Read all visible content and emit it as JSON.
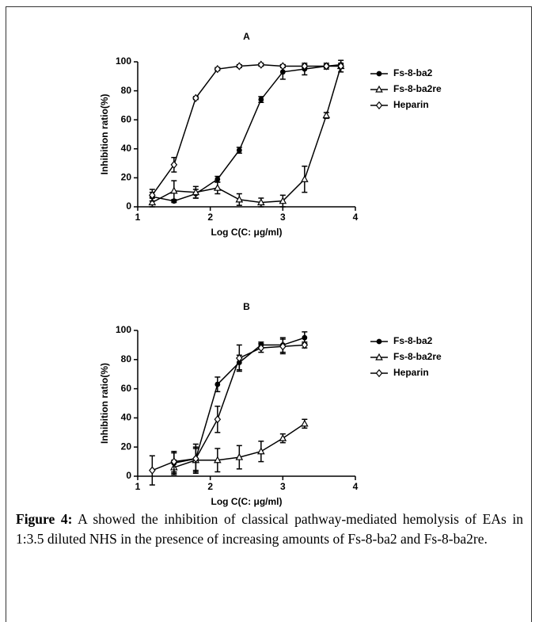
{
  "chart_data": [
    {
      "type": "line",
      "title": "A",
      "xlabel": "Log C(C: μg/ml)",
      "ylabel": "Inhibition ratio(%)",
      "xlim": [
        1,
        4
      ],
      "xticks": [
        1,
        2,
        3,
        4
      ],
      "ylim": [
        0,
        100
      ],
      "yticks": [
        0,
        20,
        40,
        60,
        80,
        100
      ],
      "legend": "right",
      "series": [
        {
          "name": "Fs-8-ba2",
          "marker": "circle",
          "color": "#000000",
          "x": [
            1.2,
            1.5,
            1.8,
            2.1,
            2.4,
            2.7,
            3.0,
            3.3,
            3.6,
            3.8
          ],
          "values": [
            7,
            4,
            9,
            19,
            39,
            74,
            93,
            95,
            97,
            98
          ],
          "errors": [
            3,
            1,
            3,
            2,
            2,
            2,
            5,
            4,
            2,
            1
          ]
        },
        {
          "name": "Fs-8-ba2re",
          "marker": "triangle",
          "color": "#000000",
          "x": [
            1.2,
            1.5,
            1.8,
            2.1,
            2.4,
            2.7,
            3.0,
            3.3,
            3.6,
            3.8
          ],
          "values": [
            3,
            11,
            10,
            13,
            5,
            3,
            4,
            19,
            63,
            97
          ],
          "errors": [
            3,
            7,
            4,
            4,
            4,
            3,
            4,
            9,
            2,
            4
          ]
        },
        {
          "name": "Heparin",
          "marker": "diamond",
          "color": "#000000",
          "x": [
            1.2,
            1.5,
            1.8,
            2.1,
            2.4,
            2.7,
            3.0,
            3.3,
            3.6,
            3.8
          ],
          "values": [
            8,
            29,
            75,
            95,
            97,
            98,
            97,
            97,
            97,
            97
          ],
          "errors": [
            4,
            5,
            1,
            1,
            1,
            1,
            1,
            1,
            1,
            1
          ]
        }
      ]
    },
    {
      "type": "line",
      "title": "B",
      "xlabel": "Log C(C: μg/ml)",
      "ylabel": "Inhibition ratio(%)",
      "xlim": [
        1,
        4
      ],
      "xticks": [
        1,
        2,
        3,
        4
      ],
      "ylim": [
        0,
        100
      ],
      "yticks": [
        0,
        20,
        40,
        60,
        80,
        100
      ],
      "legend": "right",
      "series": [
        {
          "name": "Fs-8-ba2",
          "marker": "circle",
          "color": "#000000",
          "x": [
            1.5,
            1.8,
            2.1,
            2.4,
            2.7,
            3.0,
            3.3
          ],
          "values": [
            9,
            12,
            63,
            78,
            90,
            90,
            95
          ],
          "errors": [
            7,
            8,
            5,
            5,
            2,
            5,
            4
          ]
        },
        {
          "name": "Fs-8-ba2re",
          "marker": "triangle",
          "color": "#000000",
          "x": [
            1.5,
            1.8,
            2.1,
            2.4,
            2.7,
            3.0,
            3.3
          ],
          "values": [
            6,
            11,
            11,
            13,
            17,
            26,
            36
          ],
          "errors": [
            5,
            8,
            8,
            8,
            7,
            3,
            3
          ]
        },
        {
          "name": "Heparin",
          "marker": "diamond",
          "color": "#000000",
          "x": [
            1.2,
            1.5,
            1.8,
            2.1,
            2.4,
            2.7,
            3.0,
            3.3
          ],
          "values": [
            4,
            10,
            12,
            39,
            81,
            88,
            89,
            90
          ],
          "errors": [
            10,
            7,
            10,
            9,
            9,
            3,
            5,
            2
          ]
        }
      ]
    }
  ],
  "caption": {
    "label": "Figure 4:",
    "text": "A showed the inhibition of classical pathway-mediated hemolysis of EAs in 1:3.5 diluted NHS in the presence of increasing amounts of Fs-8-ba2 and Fs-8-ba2re."
  }
}
